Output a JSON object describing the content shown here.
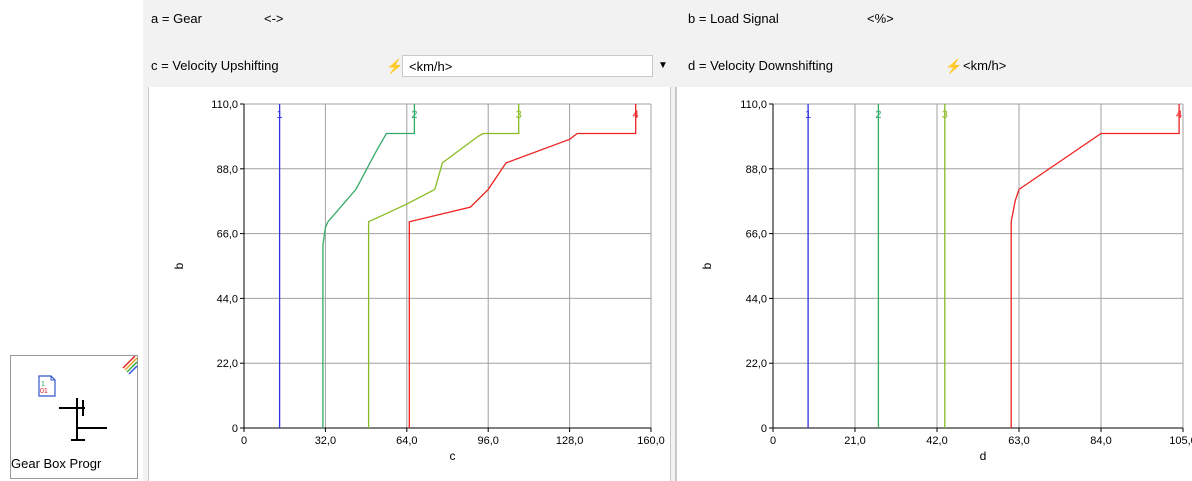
{
  "block": {
    "label": "Gear Box Progr",
    "icon": "gearbox-icon",
    "doc_icon_text": "01",
    "corner_icon": "rainbow-corner-icon"
  },
  "params": {
    "a": {
      "var": "a",
      "eq": "=",
      "name": "Gear",
      "unit": "<->"
    },
    "b": {
      "var": "b",
      "eq": "=",
      "name": "Load Signal",
      "unit": "<%>"
    },
    "c": {
      "var": "c",
      "eq": "=",
      "name": "Velocity Upshifting",
      "unit": "<km/h>",
      "dropdown_icon": "chevron-down-icon",
      "link_icon": "lightning-icon"
    },
    "d": {
      "var": "d",
      "eq": "=",
      "name": "Velocity Downshifting",
      "unit": "<km/h>",
      "link_icon": "lightning-icon"
    }
  },
  "colors": {
    "gear1": "#3333dd",
    "gear2": "#33aa66",
    "gear3": "#88bb22",
    "gear4": "#ee2222",
    "grid": "#a0a0a0"
  },
  "chart_data": [
    {
      "type": "line",
      "title": "",
      "xlabel": "c",
      "ylabel": "b",
      "xlim": [
        0,
        160
      ],
      "ylim": [
        0,
        110
      ],
      "xticks": [
        "0",
        "32,0",
        "64,0",
        "96,0",
        "128,0",
        "160,0"
      ],
      "xtick_values": [
        0,
        32,
        64,
        96,
        128,
        160
      ],
      "yticks": [
        "0",
        "22,0",
        "44,0",
        "66,0",
        "88,0",
        "110,0"
      ],
      "ytick_values": [
        0,
        22,
        44,
        66,
        88,
        110
      ],
      "grid": true,
      "series": [
        {
          "name": "1",
          "color": "#3333dd",
          "points": [
            [
              14,
              0
            ],
            [
              14,
              110
            ]
          ]
        },
        {
          "name": "2",
          "color": "#33aa66",
          "points": [
            [
              31,
              0
            ],
            [
              31,
              62
            ],
            [
              32,
              68
            ],
            [
              33,
              70
            ],
            [
              44,
              81
            ],
            [
              52,
              94
            ],
            [
              56,
              100
            ],
            [
              67,
              100
            ],
            [
              67,
              110
            ]
          ]
        },
        {
          "name": "3",
          "color": "#88bb22",
          "points": [
            [
              49,
              0
            ],
            [
              49,
              70
            ],
            [
              64,
              76
            ],
            [
              75,
              81
            ],
            [
              78,
              90
            ],
            [
              92,
              99
            ],
            [
              94,
              100
            ],
            [
              108,
              100
            ],
            [
              108,
              110
            ]
          ]
        },
        {
          "name": "4",
          "color": "#ee2222",
          "points": [
            [
              65,
              0
            ],
            [
              65,
              70
            ],
            [
              89,
              75
            ],
            [
              96,
              81
            ],
            [
              103,
              90
            ],
            [
              128,
              98
            ],
            [
              131,
              100
            ],
            [
              154,
              100
            ],
            [
              154,
              110
            ]
          ]
        }
      ]
    },
    {
      "type": "line",
      "title": "",
      "xlabel": "d",
      "ylabel": "b",
      "xlim": [
        0,
        105
      ],
      "ylim": [
        0,
        110
      ],
      "xticks": [
        "0",
        "21,0",
        "42,0",
        "63,0",
        "84,0",
        "105,0"
      ],
      "xtick_values": [
        0,
        21,
        42,
        63,
        84,
        105
      ],
      "yticks": [
        "0",
        "22,0",
        "44,0",
        "66,0",
        "88,0",
        "110,0"
      ],
      "ytick_values": [
        0,
        22,
        44,
        66,
        88,
        110
      ],
      "grid": true,
      "series": [
        {
          "name": "1",
          "color": "#3333dd",
          "points": [
            [
              9,
              0
            ],
            [
              9,
              110
            ]
          ]
        },
        {
          "name": "2",
          "color": "#33aa66",
          "points": [
            [
              27,
              0
            ],
            [
              27,
              110
            ]
          ]
        },
        {
          "name": "3",
          "color": "#88bb22",
          "points": [
            [
              44,
              0
            ],
            [
              44,
              110
            ]
          ]
        },
        {
          "name": "4",
          "color": "#ee2222",
          "points": [
            [
              61,
              0
            ],
            [
              61,
              70
            ],
            [
              62,
              77
            ],
            [
              63,
              81
            ],
            [
              84,
              100
            ],
            [
              104,
              100
            ],
            [
              104,
              110
            ]
          ]
        }
      ]
    }
  ]
}
